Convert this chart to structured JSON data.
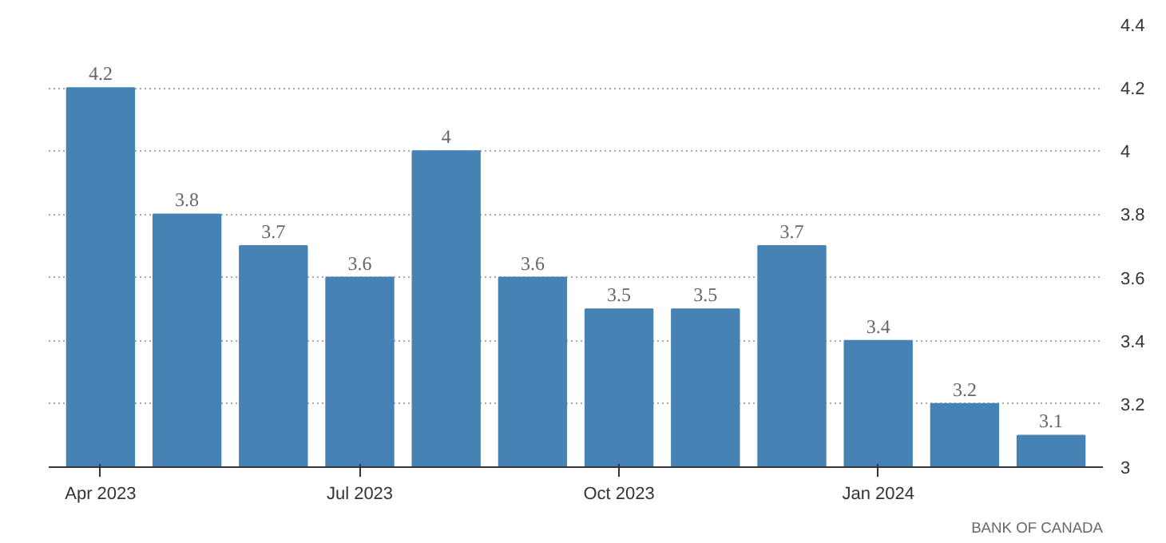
{
  "chart_data": {
    "type": "bar",
    "categories": [
      "Apr 2023",
      null,
      null,
      "Jul 2023",
      null,
      null,
      "Oct 2023",
      null,
      null,
      "Jan 2024",
      null,
      null
    ],
    "values": [
      4.2,
      3.8,
      3.7,
      3.6,
      4,
      3.6,
      3.5,
      3.5,
      3.7,
      3.4,
      3.2,
      3.1
    ],
    "color": "#4682b4",
    "ylim": [
      3,
      4.4
    ],
    "yticks": [
      3,
      3.2,
      3.4,
      3.6,
      3.8,
      4,
      4.2,
      4.4
    ],
    "grid": "y",
    "data_labels": true,
    "annotations": [
      "BANK OF CANADA"
    ]
  }
}
